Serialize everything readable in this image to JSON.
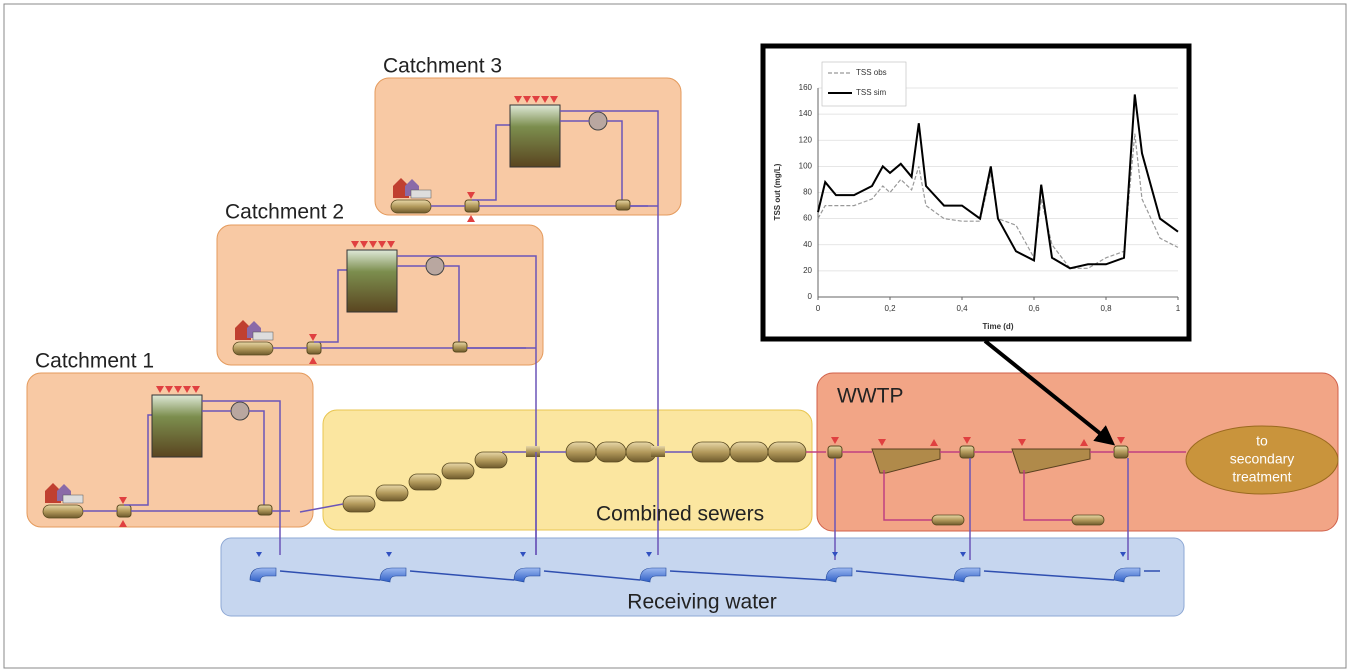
{
  "catchments": [
    "Catchment 1",
    "Catchment 2",
    "Catchment 3"
  ],
  "zones": {
    "sewers": "Combined sewers",
    "wwtp": "WWTP",
    "receiving": "Receiving water",
    "secondary": [
      "to",
      "secondary",
      "treatment"
    ]
  },
  "chart_data": {
    "type": "line",
    "xlabel": "Time (d)",
    "ylabel": "TSS out (mg/L)",
    "xlim": [
      0,
      1
    ],
    "ylim": [
      0,
      160
    ],
    "xticks": [
      0,
      {
        "value": 0.2,
        "label": "0,2"
      },
      {
        "value": 0.4,
        "label": "0,4"
      },
      {
        "value": 0.6,
        "label": "0,6"
      },
      {
        "value": 0.8,
        "label": "0,8"
      },
      1
    ],
    "yticks": [
      0,
      20,
      40,
      60,
      80,
      100,
      120,
      140,
      160
    ],
    "grid": true,
    "x": [
      0,
      0.02,
      0.05,
      0.1,
      0.15,
      0.18,
      0.2,
      0.23,
      0.26,
      0.28,
      0.3,
      0.35,
      0.4,
      0.45,
      0.48,
      0.5,
      0.55,
      0.6,
      0.62,
      0.65,
      0.7,
      0.75,
      0.8,
      0.85,
      0.88,
      0.9,
      0.95,
      1
    ],
    "series": [
      {
        "name": "TSS obs",
        "color": "#999999",
        "dashed": true,
        "values": [
          60,
          70,
          70,
          70,
          75,
          85,
          80,
          90,
          82,
          100,
          70,
          60,
          58,
          58,
          95,
          60,
          55,
          30,
          75,
          40,
          22,
          22,
          30,
          35,
          125,
          75,
          45,
          38
        ]
      },
      {
        "name": "TSS sim",
        "color": "#000000",
        "dashed": false,
        "values": [
          65,
          88,
          78,
          78,
          85,
          100,
          95,
          102,
          92,
          133,
          85,
          70,
          70,
          60,
          100,
          60,
          35,
          28,
          86,
          30,
          22,
          25,
          25,
          30,
          155,
          110,
          60,
          50
        ]
      }
    ]
  }
}
